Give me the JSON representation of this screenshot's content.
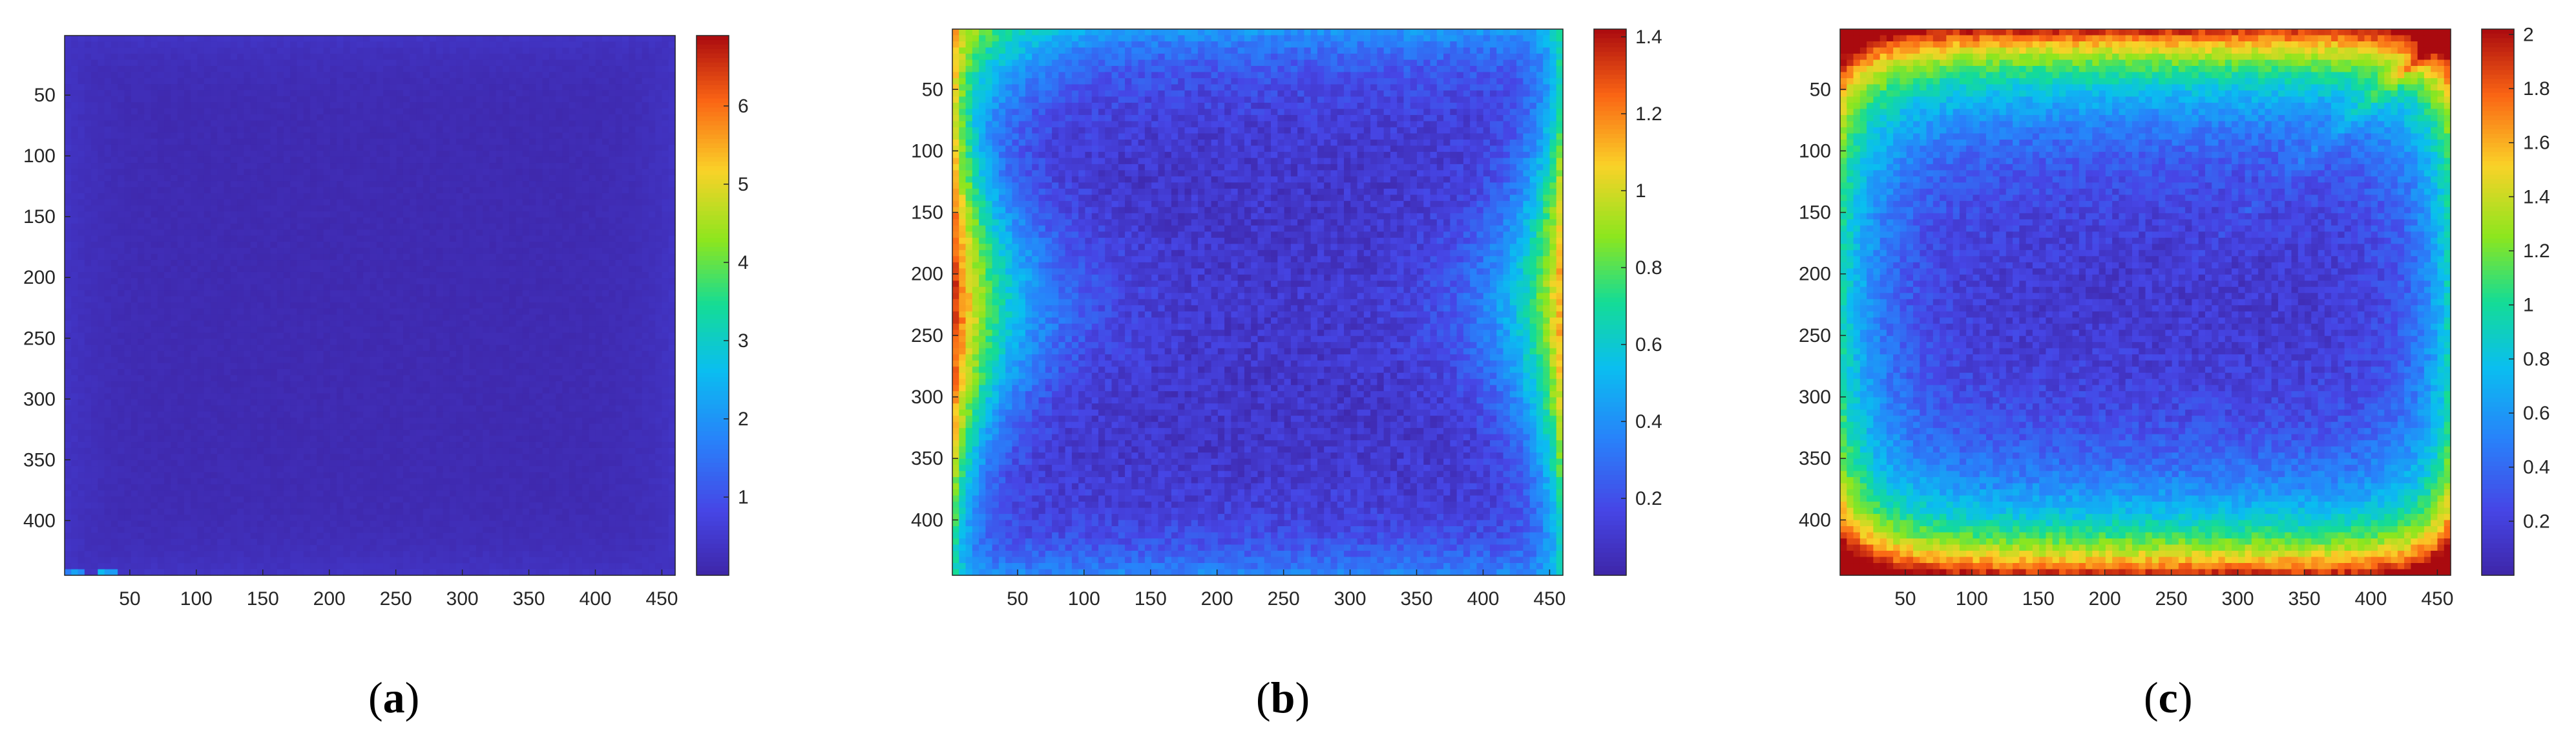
{
  "panels": [
    {
      "label": "a",
      "chart_data": {
        "type": "heatmap",
        "title": "",
        "xlabel": "",
        "ylabel": "",
        "xlim": [
          1,
          460
        ],
        "ylim": [
          1,
          445
        ],
        "y_reversed": true,
        "xticks": [
          50,
          100,
          150,
          200,
          250,
          300,
          350,
          400,
          450
        ],
        "yticks": [
          50,
          100,
          150,
          200,
          250,
          300,
          350,
          400
        ],
        "colorbar": {
          "min": 0,
          "max": 6.9,
          "ticks": [
            1,
            2,
            3,
            4,
            5,
            6
          ]
        },
        "colormap": "jet",
        "pattern": "uniform",
        "typical": {
          "center": 0.15,
          "edge": 0.35
        }
      }
    },
    {
      "label": "b",
      "chart_data": {
        "type": "heatmap",
        "title": "",
        "xlabel": "",
        "ylabel": "",
        "xlim": [
          1,
          460
        ],
        "ylim": [
          1,
          445
        ],
        "y_reversed": true,
        "xticks": [
          50,
          100,
          150,
          200,
          250,
          300,
          350,
          400,
          450
        ],
        "yticks": [
          50,
          100,
          150,
          200,
          250,
          300,
          350,
          400
        ],
        "colorbar": {
          "min": 0,
          "max": 1.42,
          "ticks": [
            0.2,
            0.4,
            0.6,
            0.8,
            1,
            1.2,
            1.4
          ]
        },
        "colormap": "jet",
        "pattern": "side-edges",
        "typical": {
          "center": 0.12,
          "edge": 0.95
        }
      }
    },
    {
      "label": "c",
      "chart_data": {
        "type": "heatmap",
        "title": "",
        "xlabel": "",
        "ylabel": "",
        "xlim": [
          1,
          460
        ],
        "ylim": [
          1,
          445
        ],
        "y_reversed": true,
        "xticks": [
          50,
          100,
          150,
          200,
          250,
          300,
          350,
          400,
          450
        ],
        "yticks": [
          50,
          100,
          150,
          200,
          250,
          300,
          350,
          400
        ],
        "colorbar": {
          "min": 0,
          "max": 2.02,
          "ticks": [
            0.2,
            0.4,
            0.6,
            0.8,
            1,
            1.2,
            1.4,
            1.6,
            1.8,
            2
          ]
        },
        "colormap": "jet",
        "pattern": "all-edges",
        "typical": {
          "center": 0.2,
          "edge": 1.6
        }
      }
    }
  ]
}
